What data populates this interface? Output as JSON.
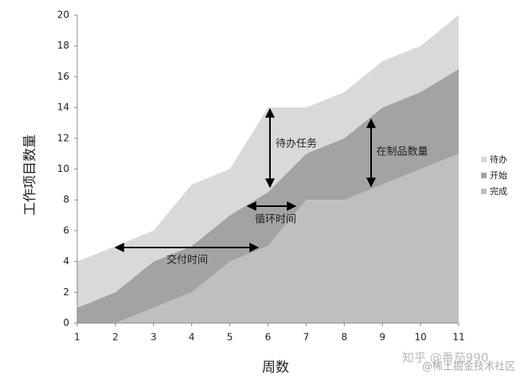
{
  "chart_data": {
    "type": "stacked_area",
    "x_label": "周数",
    "y_label": "工作项目数量",
    "x": [
      1,
      2,
      3,
      4,
      5,
      6,
      7,
      8,
      9,
      10,
      11
    ],
    "series": [
      {
        "name": "待办",
        "color": "#d9d9d9",
        "values": [
          3,
          3,
          2,
          4,
          3,
          5.5,
          3,
          3,
          3,
          3,
          3.5
        ]
      },
      {
        "name": "开始",
        "color": "#a3a3a3",
        "values": [
          1,
          2,
          3,
          3,
          3,
          3.5,
          3,
          4,
          5,
          5,
          5.5
        ]
      },
      {
        "name": "完成",
        "color": "#bfbfbf",
        "values": [
          0,
          0,
          1,
          2,
          4,
          5,
          8,
          8,
          9,
          10,
          11
        ]
      }
    ],
    "xlim": [
      1,
      11
    ],
    "xticks": [
      1,
      2,
      3,
      4,
      5,
      6,
      7,
      8,
      9,
      10,
      11
    ],
    "ylim": [
      0,
      20
    ],
    "yticks": [
      0,
      2,
      4,
      6,
      8,
      10,
      12,
      14,
      16,
      18,
      20
    ],
    "grid": false,
    "legend": "right",
    "annotations": [
      "待办任务",
      "在制品数量",
      "循环时间",
      "交付时间"
    ],
    "watermark": [
      "知乎 @番茄990",
      "@稀土掘金技术社区"
    ]
  }
}
